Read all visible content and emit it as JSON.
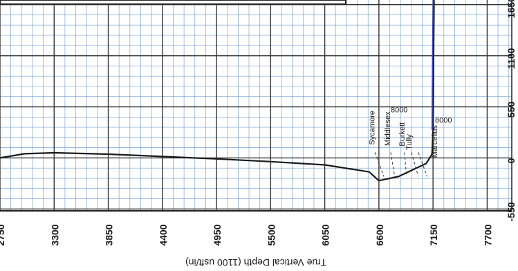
{
  "chart_data": {
    "type": "line",
    "title": "",
    "ylabel": "True Vertical Depth (1100 usft/in)",
    "xlabel": "",
    "y_ticks": [
      "2750",
      "3300",
      "3850",
      "4400",
      "4950",
      "5500",
      "6050",
      "6600",
      "7150",
      "7700"
    ],
    "x_ticks": [
      "-550",
      "0",
      "550",
      "1100",
      "1650"
    ],
    "y_range_tvd": [
      2750,
      7950
    ],
    "x_range": [
      -570,
      1700
    ],
    "grid": true,
    "series": [
      {
        "name": "",
        "color": "#1a1a1a",
        "points": [
          [
            0,
            2750
          ],
          [
            45,
            3000
          ],
          [
            55,
            3300
          ],
          [
            40,
            3850
          ],
          [
            15,
            4400
          ],
          [
            -10,
            4950
          ],
          [
            -40,
            5500
          ],
          [
            -75,
            6050
          ],
          [
            -150,
            6500
          ],
          [
            -245,
            6600
          ],
          [
            -200,
            6800
          ],
          [
            -60,
            7080
          ],
          [
            40,
            7140
          ],
          [
            300,
            7150
          ],
          [
            1100,
            7155
          ],
          [
            1700,
            7160
          ]
        ]
      },
      {
        "name": "",
        "color": "#3344bb",
        "points": [
          [
            300,
            7140
          ],
          [
            1100,
            7145
          ],
          [
            1700,
            7150
          ]
        ]
      }
    ],
    "annotations": [
      {
        "text": "Sycamore",
        "tvd": 6555,
        "x": 140
      },
      {
        "text": "Middlesex",
        "tvd": 6715,
        "x": 130
      },
      {
        "text": "Burkett",
        "tvd": 6860,
        "x": 125
      },
      {
        "text": "Tully",
        "tvd": 6930,
        "x": 85
      },
      {
        "text": "Marcellus",
        "tvd": 7190,
        "x": 2
      },
      {
        "text": "8000",
        "tvd": 6720,
        "x": 490
      },
      {
        "text": "8000",
        "tvd": 7170,
        "x": 380
      }
    ]
  }
}
